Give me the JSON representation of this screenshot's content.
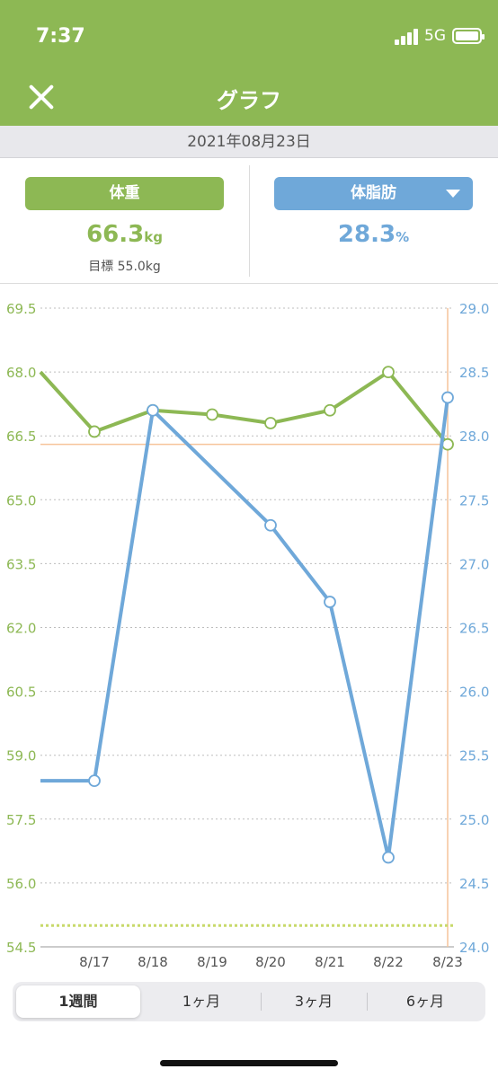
{
  "status": {
    "time": "7:37",
    "network": "5G"
  },
  "nav": {
    "title": "グラフ"
  },
  "date": "2021年08月23日",
  "summary": {
    "weight_label": "体重",
    "weight_value": "66.3",
    "weight_unit": "kg",
    "target": "目標 55.0kg",
    "fat_label": "体脂肪",
    "fat_value": "28.3",
    "fat_unit": "%"
  },
  "segments": [
    "1週間",
    "1ヶ月",
    "3ヶ月",
    "6ヶ月"
  ],
  "colors": {
    "weight": "#8db854",
    "fat": "#6fa8d9",
    "target_line": "#c8d96a",
    "marker": "#f6c49a"
  },
  "chart_data": {
    "type": "line",
    "categories": [
      "8/17",
      "8/18",
      "8/19",
      "8/20",
      "8/21",
      "8/22",
      "8/23"
    ],
    "left_axis": {
      "ticks": [
        "69.5",
        "68.0",
        "66.5",
        "65.0",
        "63.5",
        "62.0",
        "60.5",
        "59.0",
        "57.5",
        "56.0",
        "54.5"
      ],
      "range": [
        54.5,
        69.5
      ]
    },
    "right_axis": {
      "ticks": [
        "29.0",
        "28.5",
        "28.0",
        "27.5",
        "27.0",
        "26.5",
        "26.0",
        "25.5",
        "25.0",
        "24.5",
        "24.0"
      ],
      "range": [
        24.0,
        29.0
      ]
    },
    "series": [
      {
        "axis": "left",
        "leading": 68.0,
        "values": [
          66.6,
          67.1,
          67.0,
          66.8,
          67.1,
          68.0,
          66.3
        ]
      },
      {
        "axis": "right",
        "leading": 25.3,
        "values": [
          25.3,
          28.2,
          null,
          27.3,
          26.7,
          24.7,
          28.3
        ]
      }
    ],
    "target": 55.0,
    "reference_value": 66.3,
    "grid": true
  }
}
